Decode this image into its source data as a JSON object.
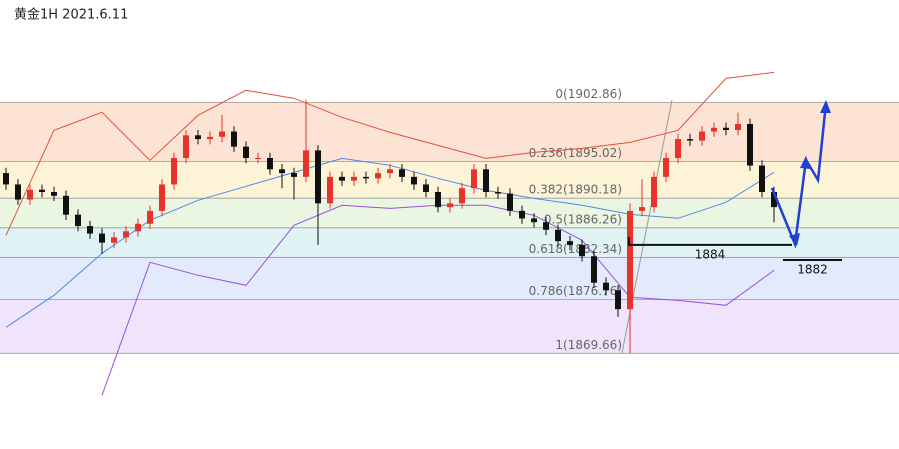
{
  "chart_data": {
    "type": "candlestick",
    "title": "黄金1H 2021.6.11",
    "ylim": [
      1857,
      1916.4
    ],
    "up_color": "#e8322c",
    "down_color": "#111111",
    "fib_levels": [
      {
        "value": 1902.86,
        "label": "0(1902.86)"
      },
      {
        "value": 1895.02,
        "label": "0.236(1895.02)"
      },
      {
        "value": 1890.18,
        "label": "0.382(1890.18)"
      },
      {
        "value": 1886.26,
        "label": "0.5(1886.26)"
      },
      {
        "value": 1882.34,
        "label": "0.618(1882.34)"
      },
      {
        "value": 1876.76,
        "label": "0.786(1876.76)"
      },
      {
        "value": 1869.66,
        "label": "1(1869.66)"
      }
    ],
    "fib_colors": [
      "#fde3d3",
      "#fdf4d8",
      "#eaf6e1",
      "#dff3f5",
      "#e3eafb",
      "#efe4fb"
    ],
    "fib_line_color": "#9a9a9a",
    "open": [
      1893.5,
      1892.0,
      1890.0,
      1891.3,
      1891.0,
      1890.5,
      1888.0,
      1886.5,
      1885.5,
      1884.3,
      1885.0,
      1885.8,
      1886.8,
      1888.5,
      1892.0,
      1895.5,
      1898.5,
      1898.0,
      1898.3,
      1899.0,
      1897.0,
      1895.5,
      1895.5,
      1894.0,
      1893.5,
      1893.0,
      1896.5,
      1889.5,
      1893.0,
      1892.5,
      1893.0,
      1892.8,
      1893.5,
      1894.0,
      1893.0,
      1892.0,
      1891.0,
      1889.0,
      1889.5,
      1891.5,
      1894.0,
      1891.0,
      1890.8,
      1888.5,
      1887.5,
      1887.0,
      1886.0,
      1884.5,
      1884.0,
      1882.5,
      1879.0,
      1878.0,
      1875.5,
      1888.5,
      1889.0,
      1893.0,
      1895.5,
      1898.0,
      1897.8,
      1899.0,
      1899.5,
      1899.2,
      1900.0,
      1894.5,
      1891.0
    ],
    "high": [
      1894.2,
      1892.7,
      1892.0,
      1892.0,
      1891.7,
      1891.2,
      1888.7,
      1887.2,
      1886.2,
      1885.7,
      1886.5,
      1887.5,
      1889.2,
      1892.7,
      1896.2,
      1899.2,
      1899.2,
      1899.0,
      1901.2,
      1899.7,
      1897.7,
      1896.2,
      1896.2,
      1894.7,
      1894.2,
      1903.2,
      1897.2,
      1893.7,
      1893.7,
      1893.7,
      1893.7,
      1894.2,
      1894.7,
      1894.7,
      1893.7,
      1892.7,
      1891.7,
      1890.2,
      1892.2,
      1894.7,
      1894.7,
      1891.7,
      1891.5,
      1889.2,
      1888.2,
      1887.7,
      1886.7,
      1885.2,
      1884.7,
      1883.2,
      1879.7,
      1878.7,
      1889.5,
      1892.7,
      1893.7,
      1896.2,
      1898.7,
      1898.7,
      1899.7,
      1900.2,
      1900.2,
      1901.5,
      1900.7,
      1895.2,
      1891.7
    ],
    "low": [
      1891.3,
      1889.3,
      1889.3,
      1890.3,
      1889.8,
      1887.3,
      1885.8,
      1884.8,
      1882.8,
      1883.6,
      1884.3,
      1885.1,
      1886.1,
      1887.8,
      1891.3,
      1894.8,
      1897.3,
      1897.3,
      1897.6,
      1896.3,
      1894.8,
      1894.8,
      1893.3,
      1891.5,
      1890.0,
      1892.3,
      1884.0,
      1888.8,
      1891.8,
      1891.8,
      1892.1,
      1892.1,
      1892.8,
      1892.3,
      1891.3,
      1890.3,
      1888.3,
      1888.3,
      1888.8,
      1890.8,
      1890.3,
      1890.1,
      1887.8,
      1886.8,
      1886.3,
      1885.3,
      1883.8,
      1883.3,
      1881.8,
      1878.3,
      1877.3,
      1874.5,
      1869.66,
      1887.8,
      1888.3,
      1892.3,
      1894.8,
      1897.1,
      1897.1,
      1898.3,
      1898.5,
      1898.5,
      1893.8,
      1890.3,
      1887.0
    ],
    "close": [
      1892.0,
      1890.0,
      1891.3,
      1891.0,
      1890.5,
      1888.0,
      1886.5,
      1885.5,
      1884.3,
      1885.0,
      1885.8,
      1886.8,
      1888.5,
      1892.0,
      1895.5,
      1898.5,
      1898.0,
      1898.3,
      1899.0,
      1897.0,
      1895.5,
      1895.5,
      1894.0,
      1893.5,
      1893.0,
      1896.5,
      1889.5,
      1893.0,
      1892.5,
      1893.0,
      1892.8,
      1893.5,
      1894.0,
      1893.0,
      1892.0,
      1891.0,
      1889.0,
      1889.5,
      1891.5,
      1894.0,
      1891.0,
      1890.8,
      1888.5,
      1887.5,
      1887.0,
      1886.0,
      1884.5,
      1884.0,
      1882.5,
      1879.0,
      1878.0,
      1875.5,
      1888.5,
      1889.0,
      1893.0,
      1895.5,
      1898.0,
      1897.8,
      1899.0,
      1899.5,
      1899.2,
      1900.0,
      1894.5,
      1891.0,
      1889.0
    ],
    "bands": {
      "index": [
        0,
        4,
        8,
        12,
        16,
        20,
        24,
        28,
        32,
        36,
        40,
        44,
        48,
        52,
        56,
        60,
        64
      ],
      "series": [
        {
          "name": "upper",
          "color": "#e0523a",
          "values": [
            1885.27,
            1899.16,
            1901.54,
            1895.19,
            1901.14,
            1904.45,
            1903.39,
            1900.88,
            1898.89,
            1897.17,
            1895.45,
            1896.24,
            1896.77,
            1897.57,
            1899.16,
            1906.03,
            1906.83
          ]
        },
        {
          "name": "middle",
          "color": "#4b8ae8",
          "values": [
            1873.1,
            1877.33,
            1882.89,
            1887.25,
            1889.9,
            1891.75,
            1893.6,
            1895.45,
            1894.53,
            1892.81,
            1891.22,
            1890.16,
            1889.24,
            1888.05,
            1887.52,
            1889.63,
            1893.6
          ]
        },
        {
          "name": "lower",
          "color": "#9a4fe0",
          "values": [
            null,
            null,
            1864.1,
            1881.7,
            1879.98,
            1878.66,
            1886.59,
            1889.24,
            1888.84,
            1889.24,
            1889.24,
            1887.91,
            1884.61,
            1877.07,
            1876.67,
            1876.01,
            1880.64
          ]
        }
      ]
    },
    "levels": [
      1884,
      1882
    ]
  }
}
